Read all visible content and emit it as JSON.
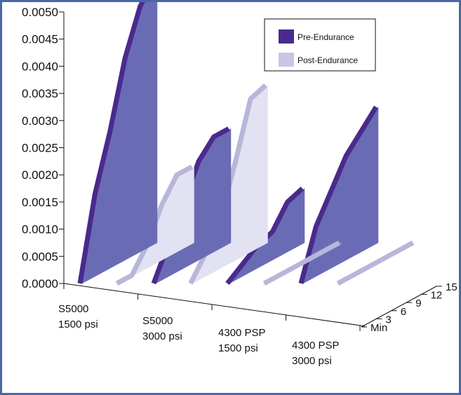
{
  "chart_data": {
    "type": "area",
    "y_ticks": [
      "0.0000",
      "0.0005",
      "0.0010",
      "0.0015",
      "0.0020",
      "0.0025",
      "0.0030",
      "0.0035",
      "0.0040",
      "0.0045",
      "0.0050"
    ],
    "ylim": [
      0,
      0.005
    ],
    "categories": [
      {
        "line1": "S5000",
        "line2": "1500 psi"
      },
      {
        "line1": "S5000",
        "line2": "3000 psi"
      },
      {
        "line1": "4300 PSP",
        "line2": "1500 psi"
      },
      {
        "line1": "4300 PSP",
        "line2": "3000 psi"
      }
    ],
    "time_ticks": [
      "Min",
      "3",
      "6",
      "9",
      "12",
      "15"
    ],
    "time_values": [
      0,
      3,
      6,
      9,
      12,
      15
    ],
    "legend": {
      "position": "top-right"
    },
    "series": [
      {
        "name": "Pre-Endurance",
        "color": "#6a6bb5",
        "edge_color": "#4a2a8c",
        "values": [
          [
            0.0,
            0.0015,
            0.0025,
            0.0037,
            0.0045,
            0.0049
          ],
          [
            0.0,
            0.0006,
            0.0012,
            0.0018,
            0.0021,
            0.0021
          ],
          [
            0.0,
            0.0002,
            0.0004,
            0.0005,
            0.0009,
            0.001
          ],
          [
            0.0,
            0.0009,
            0.0014,
            0.0019,
            0.0022,
            0.0025
          ]
        ]
      },
      {
        "name": "Post-Endurance",
        "color": "#e2e2f3",
        "edge_color": "#b8b6d9",
        "values": [
          [
            0.0,
            0.0,
            0.0004,
            0.001,
            0.0014,
            0.0014
          ],
          [
            0.0,
            0.0004,
            0.0009,
            0.0018,
            0.0028,
            0.0029
          ],
          [
            0.0,
            0.0,
            0.0,
            0.0,
            0.0,
            0.0
          ],
          [
            0.0,
            0.0,
            0.0,
            0.0,
            0.0,
            0.0
          ]
        ]
      }
    ]
  }
}
